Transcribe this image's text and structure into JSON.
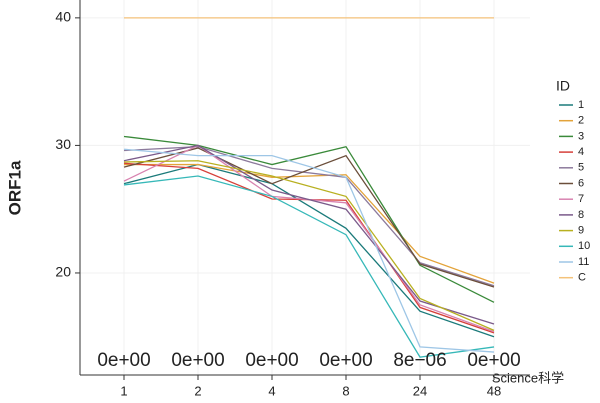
{
  "chart_data": {
    "type": "line",
    "y_label": "ORF1a",
    "legend_title": "ID",
    "categories": [
      "1",
      "2",
      "4",
      "8",
      "24",
      "48"
    ],
    "series": [
      {
        "name": "1",
        "color": "#1b7a7a",
        "values": [
          27,
          28.5,
          27,
          23.5,
          17,
          15
        ]
      },
      {
        "name": "2",
        "color": "#e3a33a",
        "values": [
          28.5,
          28.5,
          27.5,
          27.7,
          21.3,
          19.2
        ]
      },
      {
        "name": "3",
        "color": "#3a8a3a",
        "values": [
          30.7,
          30,
          28.5,
          29.9,
          20.6,
          17.7
        ]
      },
      {
        "name": "4",
        "color": "#d6403a",
        "values": [
          28.6,
          28.2,
          25.8,
          25.7,
          17.3,
          15.3
        ]
      },
      {
        "name": "5",
        "color": "#8c7a9c",
        "values": [
          29.6,
          29.9,
          28.2,
          27.5,
          20.8,
          19
        ]
      },
      {
        "name": "6",
        "color": "#6b4e3a",
        "values": [
          28.3,
          29.8,
          27,
          29.2,
          20.7,
          18.9
        ]
      },
      {
        "name": "7",
        "color": "#d883b0",
        "values": [
          27.2,
          30,
          26,
          25.5,
          17.5,
          15.4
        ]
      },
      {
        "name": "8",
        "color": "#7a5a8a",
        "values": [
          28.8,
          30,
          26.5,
          25,
          17.8,
          16
        ]
      },
      {
        "name": "9",
        "color": "#b8b020",
        "values": [
          28.7,
          28.8,
          27.6,
          26,
          18,
          15.5
        ]
      },
      {
        "name": "10",
        "color": "#36b8b8",
        "values": [
          26.9,
          27.6,
          26,
          23,
          13.4,
          14.2
        ]
      },
      {
        "name": "11",
        "color": "#9ec6e6",
        "values": [
          29.7,
          29.2,
          29.2,
          27.5,
          14.2,
          13.8
        ]
      },
      {
        "name": "C",
        "color": "#f4c27a",
        "values": [
          40,
          40,
          40,
          40,
          40,
          40
        ]
      }
    ],
    "annotations": [
      "0e+00",
      "0e+00",
      "0e+00",
      "0e+00",
      "8e−06",
      "0e+00"
    ],
    "watermark": "Science科学",
    "ylim": [
      12,
      41.4
    ],
    "yticks": [
      20,
      30,
      40
    ],
    "grid": true
  }
}
